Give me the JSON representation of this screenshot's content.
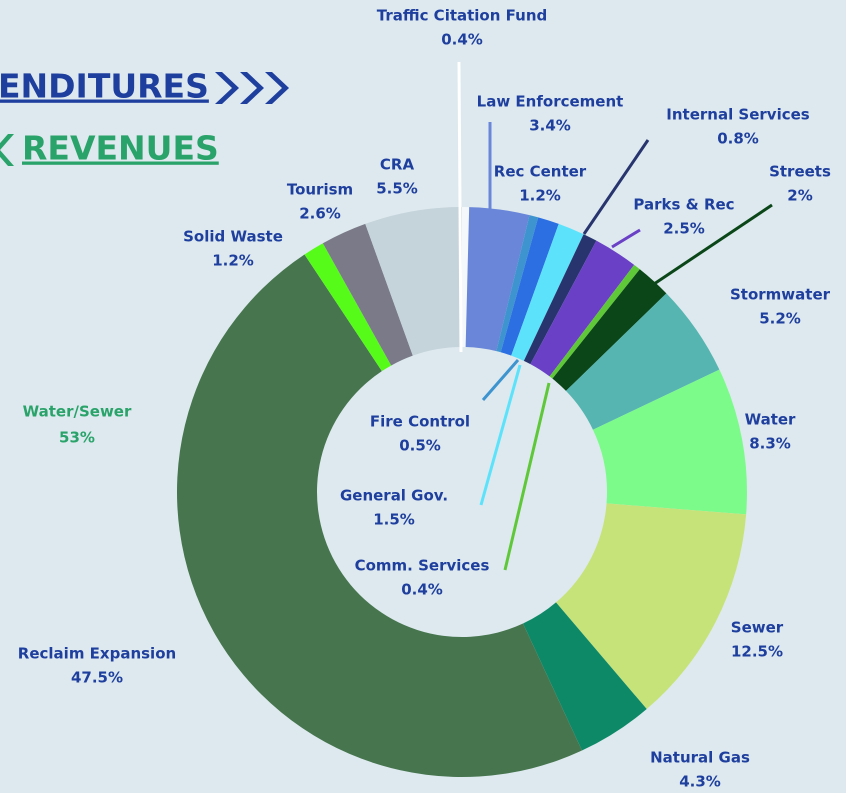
{
  "tabs": [
    "ENDITURES",
    "REVENUES"
  ],
  "chart_data": {
    "type": "pie",
    "donut": true,
    "categories": [
      "Traffic Citation Fund",
      "Law Enforcement",
      "Fire Control",
      "Rec Center",
      "General Gov.",
      "Internal Services",
      "Parks & Rec",
      "Comm. Services",
      "Streets",
      "Stormwater",
      "Water",
      "Sewer",
      "Natural Gas",
      "Reclaim Expansion",
      "Solid Waste",
      "Tourism",
      "CRA"
    ],
    "values": [
      0.4,
      3.4,
      0.5,
      1.2,
      1.5,
      0.8,
      2.5,
      0.4,
      2,
      5.2,
      8.3,
      12.5,
      4.3,
      47.5,
      1.2,
      2.6,
      5.5
    ],
    "value_labels": [
      "0.4%",
      "3.4%",
      "0.5%",
      "1.2%",
      "1.5%",
      "0.8%",
      "2.5%",
      "0.4%",
      "2%",
      "5.2%",
      "8.3%",
      "12.5%",
      "4.3%",
      "47.5%",
      "1.2%",
      "2.6%",
      "5.5%"
    ],
    "colors": [
      "#f4f8fa",
      "#6a86d8",
      "#3d94cf",
      "#2b6fe3",
      "#5ce3fb",
      "#28346e",
      "#6a40c6",
      "#5fc838",
      "#0b4618",
      "#56b5b0",
      "#7cfb8b",
      "#c6e37a",
      "#0e8968",
      "#46754e",
      "#57fb19",
      "#7a7a88",
      "#c5d3da"
    ],
    "annotations": [
      {
        "label": "Water/Sewer",
        "value": 53,
        "value_label": "53%"
      }
    ]
  }
}
